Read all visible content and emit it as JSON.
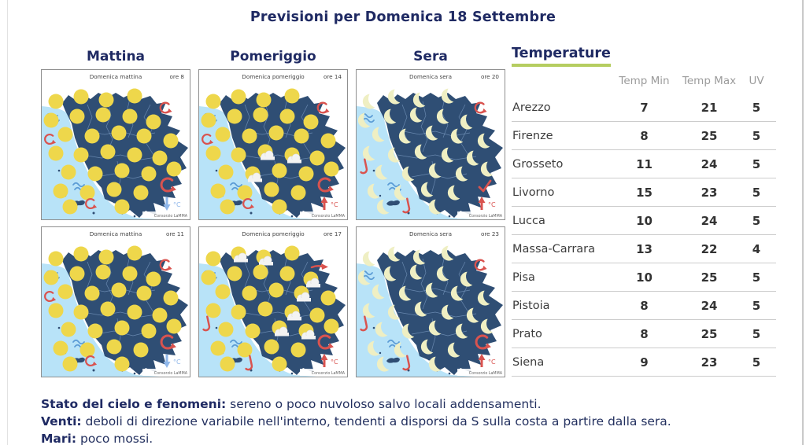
{
  "page": {
    "title": "Previsioni per Domenica 18 Settembre"
  },
  "column_headers": {
    "mattina": "Mattina",
    "pomeriggio": "Pomeriggio",
    "sera": "Sera"
  },
  "maps": [
    {
      "title": "Domenica mattina",
      "time": "ore 8",
      "icon": "sun",
      "clouds": [],
      "top_symbol": "curl",
      "side_symbol": "curl",
      "corner_symbol": "curl",
      "trend": "down",
      "credit": "Consorzio LaMMA"
    },
    {
      "title": "Domenica pomeriggio",
      "time": "ore 14",
      "icon": "sun",
      "clouds": [
        16,
        17,
        20
      ],
      "top_symbol": "curl",
      "side_symbol": "curl",
      "corner_symbol": "curl",
      "trend": "up",
      "credit": "Consorzio LaMMA"
    },
    {
      "title": "Domenica sera",
      "time": "ore 20",
      "icon": "moon",
      "clouds": [],
      "top_symbol": "curl",
      "side_symbol": "hook",
      "corner_symbol": "check",
      "trend": "up",
      "credit": "Consorzio LaMMA"
    },
    {
      "title": "Domenica mattina",
      "time": "ore 11",
      "icon": "sun",
      "clouds": [],
      "top_symbol": "curl",
      "side_symbol": "curl",
      "corner_symbol": "curl",
      "trend": "down",
      "credit": "Consorzio LaMMA"
    },
    {
      "title": "Domenica pomeriggio",
      "time": "ore 17",
      "icon": "sun",
      "clouds": [
        1,
        2,
        8,
        12,
        17,
        21,
        22
      ],
      "top_symbol": "arrow",
      "side_symbol": "hook",
      "corner_symbol": "curl",
      "trend": "up",
      "credit": "Consorzio LaMMA"
    },
    {
      "title": "Domenica sera",
      "time": "ore 23",
      "icon": "moon",
      "clouds": [],
      "top_symbol": "curl",
      "side_symbol": "hook",
      "corner_symbol": "curl",
      "trend": "up",
      "credit": "Consorzio LaMMA"
    }
  ],
  "temperature_table": {
    "title": "Temperature",
    "headers": {
      "min": "Temp Min",
      "max": "Temp Max",
      "uv": "UV"
    },
    "rows": [
      {
        "city": "Arezzo",
        "min": "7",
        "max": "21",
        "uv": "5"
      },
      {
        "city": "Firenze",
        "min": "8",
        "max": "25",
        "uv": "5"
      },
      {
        "city": "Grosseto",
        "min": "11",
        "max": "24",
        "uv": "5"
      },
      {
        "city": "Livorno",
        "min": "15",
        "max": "23",
        "uv": "5"
      },
      {
        "city": "Lucca",
        "min": "10",
        "max": "24",
        "uv": "5"
      },
      {
        "city": "Massa-Carrara",
        "min": "13",
        "max": "22",
        "uv": "4"
      },
      {
        "city": "Pisa",
        "min": "10",
        "max": "25",
        "uv": "5"
      },
      {
        "city": "Pistoia",
        "min": "8",
        "max": "24",
        "uv": "5"
      },
      {
        "city": "Prato",
        "min": "8",
        "max": "25",
        "uv": "5"
      },
      {
        "city": "Siena",
        "min": "9",
        "max": "23",
        "uv": "5"
      }
    ]
  },
  "footer": {
    "lines": [
      {
        "label": "Stato del cielo e fenomeni:",
        "text": " sereno o poco nuvoloso salvo locali addensamenti."
      },
      {
        "label": "Venti:",
        "text": " deboli di direzione variabile nell'interno, tendenti a disporsi da S sulla costa a partire dalla sera."
      },
      {
        "label": "Mari:",
        "text": " poco mossi."
      }
    ]
  },
  "temp_unit_label": "°C",
  "colors": {
    "navy_text": "#1f2a63",
    "land": "#2f4e74",
    "sea": "#b8e3f8",
    "sun": "#eed74b",
    "moon": "#efefc3",
    "wind_red": "#d9534f",
    "wave_blue": "#5a9bd5",
    "cool_blue": "#8fb7ea",
    "green_underline": "#b5cd60",
    "province_line": "#7b9bc2"
  }
}
